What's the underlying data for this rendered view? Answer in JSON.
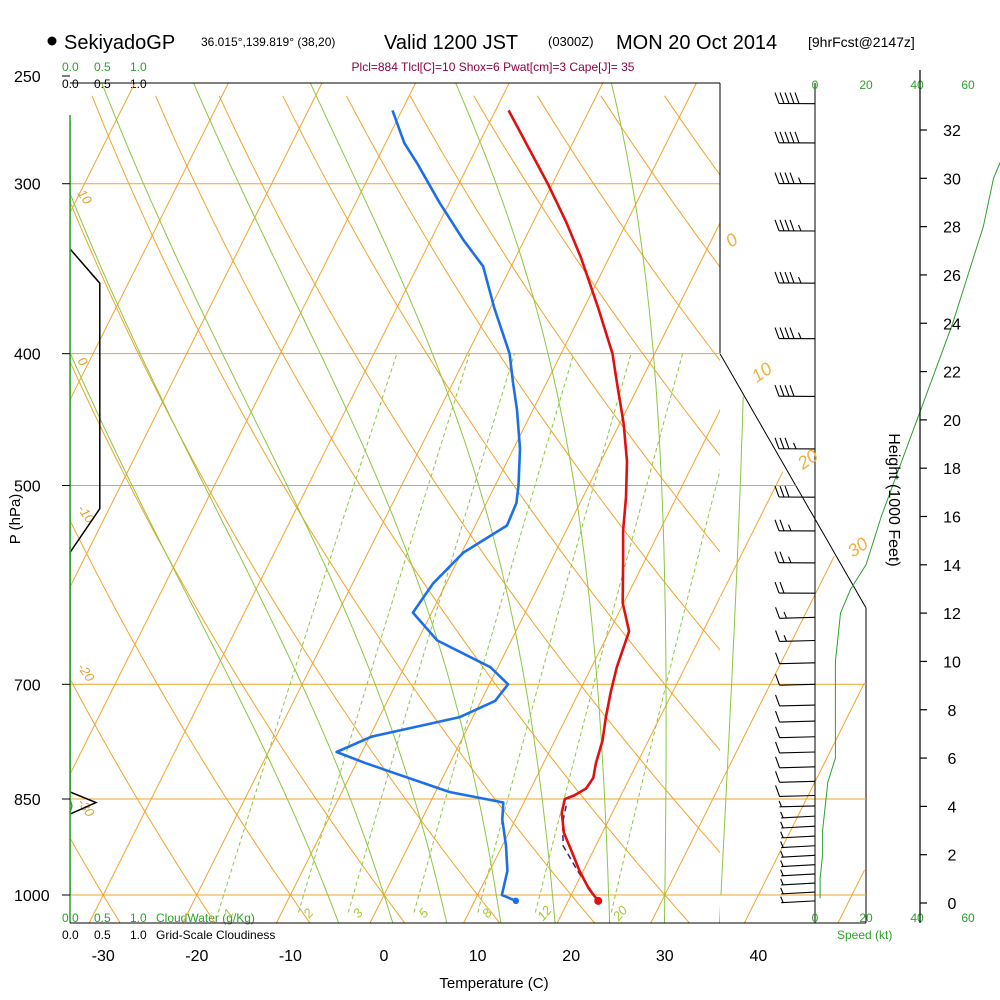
{
  "chart_data": {
    "type": "skew-t",
    "title": {
      "station": "SekiyadoGP",
      "coords": "36.015°,139.819° (38,20)",
      "valid": "Valid 1200 JST",
      "utc": "(0300Z)",
      "date": "MON 20 Oct 2014",
      "forecast": "[9hrFcst@2147z]"
    },
    "indices_line": "Plcl=884 Tlcl[C]=10 Shox=6 Pwat[cm]=3 Cape[J]= 35",
    "ylabel": "P (hPa)",
    "xlabel": "Temperature (C)",
    "right_ylabel": "Height (1000 Feet)",
    "speed_label": "Speed (kt)",
    "cloud_water_label": "CloudWater (g/Kg)",
    "cloudiness_label": "Grid-Scale Cloudiness",
    "pressure_levels": [
      250,
      300,
      400,
      500,
      700,
      850,
      1000
    ],
    "temperature_ticks": [
      -30,
      -20,
      -10,
      0,
      10,
      20,
      30,
      40
    ],
    "plim": [
      250,
      1050
    ],
    "tlim_at_bottom": [
      -34,
      46
    ],
    "height_ticks": [
      0,
      2,
      4,
      6,
      8,
      10,
      12,
      14,
      16,
      18,
      20,
      22,
      24,
      26,
      28,
      30,
      32
    ],
    "speed_ticks": [
      0,
      20,
      40,
      60
    ],
    "cloud_scale_green": [
      "0.0",
      "0.5",
      "1.0"
    ],
    "cloud_scale_black": [
      "0.0",
      "0.5",
      "1.0"
    ],
    "dry_adiabat_labels": [
      "10",
      "0",
      "-10",
      "-20",
      "-30"
    ],
    "moist_adiabat_labels": [
      "0",
      "10",
      "20",
      "30"
    ],
    "mixing_ratio_labels": [
      "1",
      "2",
      "3",
      "5",
      "8",
      "12",
      "20"
    ],
    "temperature_profile": [
      {
        "p": 1010,
        "t": 23.2
      },
      {
        "p": 990,
        "t": 21.6
      },
      {
        "p": 960,
        "t": 19.6
      },
      {
        "p": 930,
        "t": 17.8
      },
      {
        "p": 900,
        "t": 15.9
      },
      {
        "p": 870,
        "t": 14.6
      },
      {
        "p": 860,
        "t": 14.4
      },
      {
        "p": 850,
        "t": 14.2
      },
      {
        "p": 845,
        "t": 15.0
      },
      {
        "p": 835,
        "t": 15.9
      },
      {
        "p": 820,
        "t": 16.1
      },
      {
        "p": 800,
        "t": 15.6
      },
      {
        "p": 770,
        "t": 15.1
      },
      {
        "p": 740,
        "t": 14.2
      },
      {
        "p": 710,
        "t": 13.4
      },
      {
        "p": 680,
        "t": 12.7
      },
      {
        "p": 640,
        "t": 12.1
      },
      {
        "p": 610,
        "t": 9.9
      },
      {
        "p": 570,
        "t": 7.8
      },
      {
        "p": 540,
        "t": 6.1
      },
      {
        "p": 510,
        "t": 4.6
      },
      {
        "p": 480,
        "t": 2.8
      },
      {
        "p": 450,
        "t": 0.4
      },
      {
        "p": 420,
        "t": -2.5
      },
      {
        "p": 400,
        "t": -4.5
      },
      {
        "p": 370,
        "t": -8.5
      },
      {
        "p": 340,
        "t": -13.0
      },
      {
        "p": 320,
        "t": -16.5
      },
      {
        "p": 300,
        "t": -20.5
      },
      {
        "p": 280,
        "t": -25.0
      },
      {
        "p": 265,
        "t": -28.6
      }
    ],
    "dewpoint_profile": [
      {
        "p": 1010,
        "t": 14.4
      },
      {
        "p": 1000,
        "t": 12.6
      },
      {
        "p": 960,
        "t": 11.9
      },
      {
        "p": 920,
        "t": 10.4
      },
      {
        "p": 880,
        "t": 8.6
      },
      {
        "p": 855,
        "t": 7.8
      },
      {
        "p": 840,
        "t": 1.5
      },
      {
        "p": 800,
        "t": -9.0
      },
      {
        "p": 785,
        "t": -12.7
      },
      {
        "p": 765,
        "t": -9.8
      },
      {
        "p": 740,
        "t": -1.4
      },
      {
        "p": 720,
        "t": 1.5
      },
      {
        "p": 700,
        "t": 2.0
      },
      {
        "p": 680,
        "t": -0.8
      },
      {
        "p": 650,
        "t": -7.9
      },
      {
        "p": 620,
        "t": -12.0
      },
      {
        "p": 590,
        "t": -11.4
      },
      {
        "p": 560,
        "t": -9.8
      },
      {
        "p": 535,
        "t": -6.6
      },
      {
        "p": 515,
        "t": -6.8
      },
      {
        "p": 500,
        "t": -7.5
      },
      {
        "p": 470,
        "t": -9.3
      },
      {
        "p": 440,
        "t": -11.7
      },
      {
        "p": 420,
        "t": -13.6
      },
      {
        "p": 400,
        "t": -15.5
      },
      {
        "p": 370,
        "t": -19.6
      },
      {
        "p": 345,
        "t": -23.0
      },
      {
        "p": 330,
        "t": -26.5
      },
      {
        "p": 310,
        "t": -31.0
      },
      {
        "p": 290,
        "t": -35.5
      },
      {
        "p": 280,
        "t": -38.0
      },
      {
        "p": 265,
        "t": -41.0
      }
    ],
    "parcel_profile": [
      {
        "p": 1010,
        "t": 23.2
      },
      {
        "p": 960,
        "t": 19.4
      },
      {
        "p": 920,
        "t": 16.5
      },
      {
        "p": 884,
        "t": 15.2
      },
      {
        "p": 860,
        "t": 14.7
      }
    ],
    "surface_temperature": 23.2,
    "surface_dewpoint": 14.4,
    "cloudiness_profile": [
      {
        "p": 335,
        "v": 0.0
      },
      {
        "p": 355,
        "v": 0.48
      },
      {
        "p": 520,
        "v": 0.48
      },
      {
        "p": 560,
        "v": 0.0
      },
      {
        "p": 840,
        "v": 0.0
      },
      {
        "p": 855,
        "v": 0.42
      },
      {
        "p": 872,
        "v": 0.0
      }
    ],
    "cloud_water_profile": [
      {
        "p": 1000,
        "v": 0.0
      },
      {
        "p": 870,
        "v": 0.0
      },
      {
        "p": 860,
        "v": 0.03
      },
      {
        "p": 850,
        "v": 0.0
      },
      {
        "p": 270,
        "v": 0.0
      }
    ],
    "wind_speed_profile": [
      {
        "h": 0.2,
        "s": 2
      },
      {
        "h": 1.0,
        "s": 2
      },
      {
        "h": 2.0,
        "s": 3
      },
      {
        "h": 3.0,
        "s": 3
      },
      {
        "h": 4.0,
        "s": 4
      },
      {
        "h": 5.0,
        "s": 5
      },
      {
        "h": 6.0,
        "s": 8
      },
      {
        "h": 7.0,
        "s": 8
      },
      {
        "h": 8.0,
        "s": 8
      },
      {
        "h": 10.0,
        "s": 8
      },
      {
        "h": 11.0,
        "s": 9
      },
      {
        "h": 12.0,
        "s": 10
      },
      {
        "h": 13.0,
        "s": 14
      },
      {
        "h": 14.0,
        "s": 20
      },
      {
        "h": 16.0,
        "s": 26
      },
      {
        "h": 18.0,
        "s": 33
      },
      {
        "h": 20.0,
        "s": 40
      },
      {
        "h": 22.0,
        "s": 47
      },
      {
        "h": 24.0,
        "s": 54
      },
      {
        "h": 26.0,
        "s": 60
      },
      {
        "h": 28.0,
        "s": 66
      },
      {
        "h": 30.0,
        "s": 70
      },
      {
        "h": 32.0,
        "s": 78
      }
    ],
    "wind_barbs": [
      {
        "p": 1010,
        "speed": 5
      },
      {
        "p": 995,
        "speed": 5
      },
      {
        "p": 980,
        "speed": 5
      },
      {
        "p": 965,
        "speed": 5
      },
      {
        "p": 950,
        "speed": 5
      },
      {
        "p": 935,
        "speed": 5
      },
      {
        "p": 920,
        "speed": 5
      },
      {
        "p": 905,
        "speed": 5
      },
      {
        "p": 890,
        "speed": 5
      },
      {
        "p": 875,
        "speed": 5
      },
      {
        "p": 860,
        "speed": 5
      },
      {
        "p": 845,
        "speed": 10
      },
      {
        "p": 825,
        "speed": 10
      },
      {
        "p": 805,
        "speed": 10
      },
      {
        "p": 785,
        "speed": 10
      },
      {
        "p": 765,
        "speed": 10
      },
      {
        "p": 745,
        "speed": 10
      },
      {
        "p": 725,
        "speed": 10
      },
      {
        "p": 700,
        "speed": 10
      },
      {
        "p": 675,
        "speed": 10
      },
      {
        "p": 650,
        "speed": 15
      },
      {
        "p": 625,
        "speed": 15
      },
      {
        "p": 600,
        "speed": 20
      },
      {
        "p": 570,
        "speed": 25
      },
      {
        "p": 540,
        "speed": 25
      },
      {
        "p": 510,
        "speed": 30
      },
      {
        "p": 470,
        "speed": 35
      },
      {
        "p": 430,
        "speed": 40
      },
      {
        "p": 390,
        "speed": 45
      },
      {
        "p": 355,
        "speed": 45
      },
      {
        "p": 325,
        "speed": 45
      },
      {
        "p": 300,
        "speed": 45
      },
      {
        "p": 280,
        "speed": 50
      },
      {
        "p": 262,
        "speed": 50
      }
    ]
  }
}
